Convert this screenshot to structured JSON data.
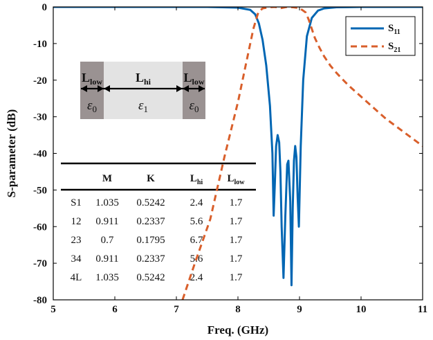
{
  "chart_data": {
    "type": "line",
    "xlabel": "Freq. (GHz)",
    "ylabel": "S-parameter (dB)",
    "xlim": [
      5,
      11
    ],
    "ylim": [
      -80,
      0
    ],
    "xticks": [
      "5",
      "6",
      "7",
      "8",
      "9",
      "10",
      "11"
    ],
    "yticks": [
      "0",
      "-10",
      "-20",
      "-30",
      "-40",
      "-50",
      "-60",
      "-70",
      "-80"
    ],
    "grid": false,
    "legend_position": "top-right",
    "series": [
      {
        "name": "S11",
        "name_main": "S",
        "name_sub": "11",
        "color": "#0066b3",
        "style": "solid",
        "x": [
          5,
          7.5,
          8.0,
          8.2,
          8.28,
          8.34,
          8.4,
          8.46,
          8.52,
          8.56,
          8.58,
          8.6,
          8.62,
          8.645,
          8.67,
          8.69,
          8.71,
          8.74,
          8.77,
          8.8,
          8.82,
          8.85,
          8.87,
          8.89,
          8.91,
          8.93,
          8.95,
          8.97,
          8.99,
          9.02,
          9.06,
          9.12,
          9.2,
          9.3,
          9.4,
          9.6,
          10.0,
          11.0
        ],
        "y": [
          0,
          0,
          -0.2,
          -0.8,
          -2.0,
          -4.5,
          -9.0,
          -16,
          -27,
          -40,
          -57,
          -48,
          -38,
          -35,
          -37,
          -45,
          -60,
          -74,
          -57,
          -43,
          -42,
          -53,
          -76,
          -55,
          -42,
          -38,
          -41,
          -52,
          -60,
          -38,
          -20,
          -8,
          -3,
          -1,
          -0.4,
          -0.1,
          0,
          0
        ]
      },
      {
        "name": "S21",
        "name_main": "S",
        "name_sub": "21",
        "color": "#d95f2b",
        "style": "dashed",
        "x": [
          7.1,
          7.3,
          7.55,
          7.78,
          8.0,
          8.15,
          8.25,
          8.33,
          8.4,
          8.5,
          8.6,
          8.7,
          8.8,
          8.9,
          9.0,
          9.1,
          9.15,
          9.2,
          9.25,
          9.32,
          9.4,
          9.5,
          9.6,
          9.7,
          9.8,
          9.9,
          10.0,
          10.2,
          10.4,
          10.6,
          10.8,
          11.0
        ],
        "y": [
          -80,
          -70,
          -58,
          -41,
          -26,
          -14,
          -6,
          -1.5,
          -0.4,
          -0.1,
          0,
          -0.3,
          0,
          -0.1,
          -0.3,
          -1.5,
          -3.5,
          -6,
          -8.5,
          -11,
          -13.5,
          -16,
          -18,
          -19.8,
          -21.5,
          -23,
          -24.5,
          -27.5,
          -30.5,
          -33,
          -35.5,
          -38
        ]
      }
    ],
    "inset_diagram": {
      "segments": [
        {
          "label_main": "L",
          "label_sub": "low",
          "eps_main": "ε",
          "eps_sub": "0"
        },
        {
          "label_main": "L",
          "label_sub": "hi",
          "eps_main": "ε",
          "eps_sub": "1"
        },
        {
          "label_main": "L",
          "label_sub": "low",
          "eps_main": "ε",
          "eps_sub": "0"
        }
      ]
    },
    "table": {
      "headers": [
        {
          "main": "",
          "sub": ""
        },
        {
          "main": "M",
          "sub": ""
        },
        {
          "main": "K",
          "sub": ""
        },
        {
          "main": "L",
          "sub": "hi"
        },
        {
          "main": "L",
          "sub": "low"
        }
      ],
      "rows": [
        [
          "S1",
          "1.035",
          "0.5242",
          "2.4",
          "1.7"
        ],
        [
          "12",
          "0.911",
          "0.2337",
          "5.6",
          "1.7"
        ],
        [
          "23",
          "0.7",
          "0.1795",
          "6.7",
          "1.7"
        ],
        [
          "34",
          "0.911",
          "0.2337",
          "5.6",
          "1.7"
        ],
        [
          "4L",
          "1.035",
          "0.5242",
          "2.4",
          "1.7"
        ]
      ]
    }
  }
}
